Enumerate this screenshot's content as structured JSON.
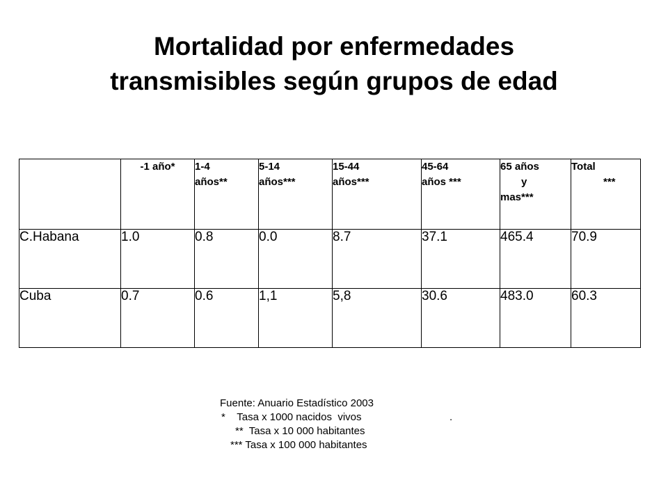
{
  "title": {
    "line1": "Mortalidad por enfermedades",
    "line2": "transmisibles según  grupos  de edad"
  },
  "table": {
    "headers": [
      {
        "lines": [
          "-1 año*"
        ]
      },
      {
        "lines": [
          "1-4",
          "años**"
        ]
      },
      {
        "lines": [
          "5-14",
          "años***"
        ]
      },
      {
        "lines": [
          "15-44",
          "años***"
        ]
      },
      {
        "lines": [
          "45-64",
          "años ***"
        ]
      },
      {
        "lines": [
          "65 años",
          "y",
          "mas***"
        ]
      },
      {
        "lines": [
          "Total",
          "***"
        ]
      }
    ],
    "rows": [
      {
        "label": "C.Habana",
        "values": [
          "1.0",
          "0.8",
          "0.0",
          "8.7",
          "37.1",
          "465.4",
          "70.9"
        ]
      },
      {
        "label": "Cuba",
        "values": [
          "0.7",
          "0.6",
          "1,1",
          "5,8",
          "30.6",
          "483.0",
          "60.3"
        ]
      }
    ]
  },
  "notes": {
    "source": "Fuente: Anuario Estadístico 2003",
    "note1": "*    Tasa x 1000 nacidos  vivos",
    "note1_dot": ".",
    "note2": "**  Tasa x 10 000 habitantes",
    "note3": "*** Tasa x 100 000 habitantes"
  }
}
